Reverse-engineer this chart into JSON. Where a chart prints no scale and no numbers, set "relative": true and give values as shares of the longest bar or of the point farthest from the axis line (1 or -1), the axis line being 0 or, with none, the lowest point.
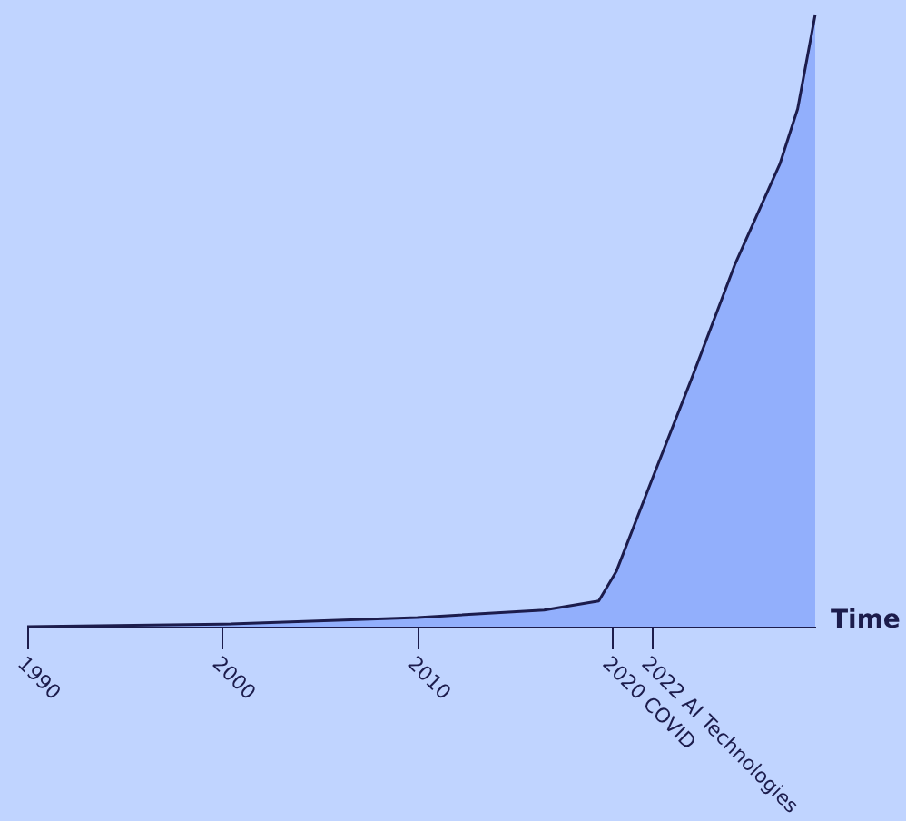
{
  "chart_data": {
    "type": "area",
    "relative": true,
    "xlabel": "Time",
    "x": [
      1990,
      2000,
      2010,
      2016.5,
      2019.3,
      2020.2,
      2022.1,
      2024,
      2026.3,
      2028.6,
      2029.5,
      2030.4
    ],
    "values": [
      0,
      0.004,
      0.015,
      0.027,
      0.042,
      0.09,
      0.246,
      0.4,
      0.593,
      0.757,
      0.846,
      1
    ],
    "color": "#7f9ffb",
    "xlim": [
      1990,
      2030.4
    ],
    "xticks": [
      1990,
      2000,
      2010,
      {
        "value": 2020,
        "label": "2020 COVID"
      },
      {
        "value": 2022,
        "label": "2022 AI Technologies"
      }
    ]
  }
}
